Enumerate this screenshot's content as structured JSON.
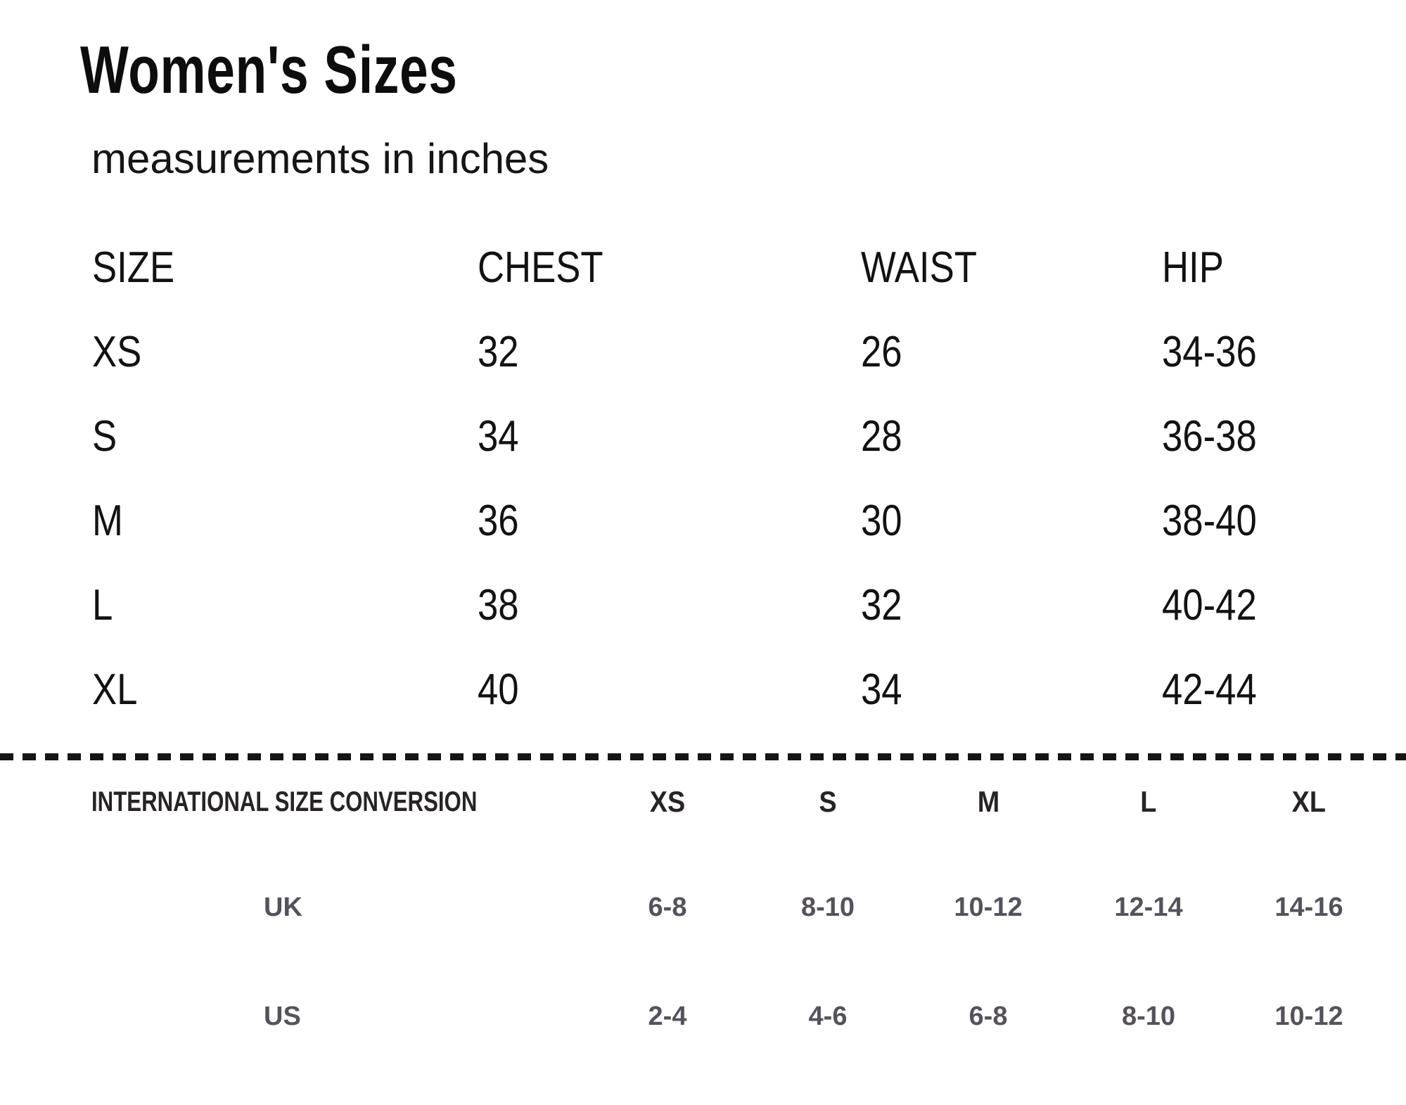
{
  "page": {
    "title": "Women's Sizes",
    "subtitle": "measurements in inches"
  },
  "size_table": {
    "headers": [
      "SIZE",
      "CHEST",
      "WAIST",
      "HIP"
    ],
    "rows": [
      {
        "size": "XS",
        "chest": "32",
        "waist": "26",
        "hip": "34-36"
      },
      {
        "size": "S",
        "chest": "34",
        "waist": "28",
        "hip": "36-38"
      },
      {
        "size": "M",
        "chest": "36",
        "waist": "30",
        "hip": "38-40"
      },
      {
        "size": "L",
        "chest": "38",
        "waist": "32",
        "hip": "40-42"
      },
      {
        "size": "XL",
        "chest": "40",
        "waist": "34",
        "hip": "42-44"
      }
    ]
  },
  "conversion": {
    "label": "INTERNATIONAL SIZE CONVERSION",
    "sizes": [
      "XS",
      "S",
      "M",
      "L",
      "XL"
    ],
    "rows": [
      {
        "region": "UK",
        "values": [
          "6-8",
          "8-10",
          "10-12",
          "12-14",
          "14-16"
        ]
      },
      {
        "region": "US",
        "values": [
          "2-4",
          "4-6",
          "6-8",
          "8-10",
          "10-12"
        ]
      }
    ]
  },
  "colors": {
    "background": "#ffffff",
    "primary_text": "#141414",
    "conversion_heading_text": "#272327",
    "conversion_value_text": "#56525b",
    "divider": "#151515"
  }
}
